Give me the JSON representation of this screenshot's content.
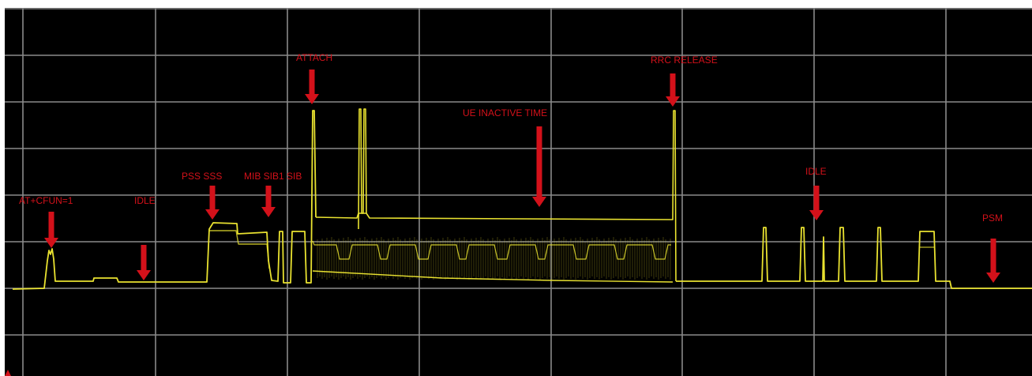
{
  "chart_data": {
    "type": "line",
    "title": "",
    "xlabel": "",
    "ylabel": "",
    "grid": true,
    "grid_divisions": {
      "x": 8,
      "y": 8
    },
    "background_color": "#000000",
    "grid_color": "#8a8a8a",
    "trace_color": "#e9e230",
    "annotation_color": "#d3111a",
    "annotations": [
      {
        "label": "AT+CFUN=1",
        "has_arrow": true
      },
      {
        "label": "IDLE",
        "has_arrow": true
      },
      {
        "label": "PSS SSS",
        "has_arrow": true
      },
      {
        "label": "MIB SIB1 SIB",
        "has_arrow": true
      },
      {
        "label": "ATTACH",
        "has_arrow": true
      },
      {
        "label": "UE INACTIVE  TIME",
        "has_arrow": true
      },
      {
        "label": "RRC RELEASE",
        "has_arrow": true
      },
      {
        "label": "IDLE",
        "has_arrow": true
      },
      {
        "label": "PSM",
        "has_arrow": true
      }
    ]
  }
}
